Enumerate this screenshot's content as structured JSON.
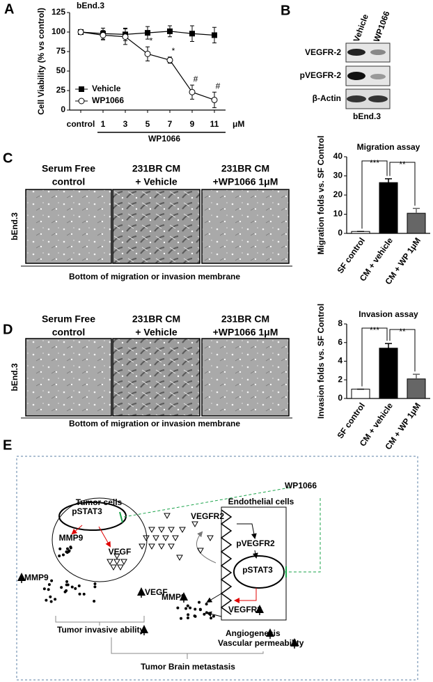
{
  "panel_labels": [
    "A",
    "B",
    "C",
    "D",
    "E"
  ],
  "chart_data": [
    {
      "type": "line",
      "title": "bEnd.3",
      "ylabel": "Cell Viability (% vs control)",
      "categories": [
        "control",
        "1",
        "3",
        "5",
        "7",
        "9",
        "11"
      ],
      "series": [
        {
          "name": "Vehicle",
          "color": "#000000",
          "marker_fill": "#000000",
          "values": [
            100,
            98,
            97,
            99,
            101,
            98,
            96
          ],
          "error": [
            3,
            7,
            8,
            8,
            7,
            10,
            10
          ]
        },
        {
          "name": "WP1066",
          "color": "#000000",
          "marker_fill": "#ffffff",
          "values": [
            100,
            96,
            94,
            72,
            64,
            23,
            13
          ],
          "error": [
            3,
            6,
            10,
            9,
            4,
            9,
            10
          ]
        }
      ],
      "ylim": [
        0,
        125
      ],
      "yticks": [
        0,
        25,
        50,
        75,
        100,
        125
      ],
      "legend": "lower left",
      "x_group_label": "WP1066",
      "x_unit": "μM",
      "annotations": [
        {
          "text": "*",
          "category": "5"
        },
        {
          "text": "*",
          "category": "7"
        },
        {
          "text": "#",
          "category": "9"
        },
        {
          "text": "#",
          "category": "11"
        }
      ]
    },
    {
      "type": "bar",
      "title": "Migration assay",
      "ylabel": "Migration folds vs. SF Control",
      "categories": [
        "SF control",
        "CM + vehicle",
        "CM + WP 1μM"
      ],
      "values": [
        1,
        26.5,
        10.5
      ],
      "error": [
        0,
        2,
        2.5
      ],
      "colors": [
        "#ffffff",
        "#000000",
        "#666666"
      ],
      "ylim": [
        0,
        40
      ],
      "yticks": [
        0,
        10,
        20,
        30,
        40
      ],
      "annotations": [
        {
          "text": "***",
          "categories": [
            "SF control",
            "CM + vehicle"
          ]
        },
        {
          "text": "**",
          "categories": [
            "CM + vehicle",
            "CM + WP 1μM"
          ]
        }
      ]
    },
    {
      "type": "bar",
      "title": "Invasion assay",
      "ylabel": "Invasion folds vs. SF Control",
      "categories": [
        "SF control",
        "CM + vehicle",
        "CM + WP 1μM"
      ],
      "values": [
        1,
        5.4,
        2.1
      ],
      "error": [
        0,
        0.5,
        0.5
      ],
      "colors": [
        "#ffffff",
        "#000000",
        "#666666"
      ],
      "ylim": [
        0,
        8
      ],
      "yticks": [
        0,
        2,
        4,
        6,
        8
      ],
      "annotations": [
        {
          "text": "***",
          "categories": [
            "SF control",
            "CM + vehicle"
          ]
        },
        {
          "text": "**",
          "categories": [
            "CM + vehicle",
            "CM + WP 1μM"
          ]
        }
      ]
    }
  ],
  "blot": {
    "lanes": [
      "Vehicle",
      "WP1066"
    ],
    "rows": [
      "VEGFR-2",
      "pVEGFR-2",
      "β-Actin"
    ],
    "cell_line": "bEnd.3"
  },
  "micrographs": [
    {
      "conditions": [
        [
          "Serum Free",
          "control"
        ],
        [
          "231BR CM",
          "+ Vehicle"
        ],
        [
          "231BR CM",
          "+WP1066 1μM"
        ]
      ],
      "cell_line": "bEnd.3",
      "caption": "Bottom  of migration  or invasion  membrane"
    },
    {
      "conditions": [
        [
          "Serum Free",
          "control"
        ],
        [
          "231BR CM",
          "+ Vehicle"
        ],
        [
          "231BR CM",
          "+WP1066 1μM"
        ]
      ],
      "cell_line": "bEnd.3",
      "caption": "Bottom  of migration  or invasion  membrane"
    }
  ],
  "diagram": {
    "inhibitor": "WP1066",
    "tumor_cells": "Tumor cells",
    "tumor_pstat3": "pSTAT3",
    "tumor_mmp9": "MMP9",
    "tumor_vegf": "VEGF",
    "secreted_mmp9": "MMP9",
    "secreted_vegf": "VEGF",
    "endothelial_cells": "Endothelial cells",
    "receptor": "VEGFR2",
    "phospho_receptor": "pVEGFR2",
    "endothelial_pstat3": "pSTAT3",
    "endothelial_mmp9": "MMP9",
    "endothelial_vegfr2": "VEGFR2",
    "angiogenesis": "Angiogenesis",
    "permeability": "Vascular permeability",
    "invasive_ability": "Tumor invasive ability",
    "outcome": "Tumor Brain metastasis"
  }
}
